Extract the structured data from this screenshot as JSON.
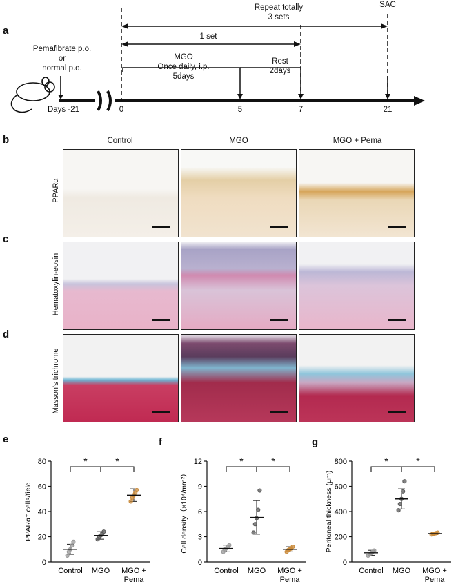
{
  "panel_letters": {
    "a": "a",
    "b": "b",
    "c": "c",
    "d": "d",
    "e": "e",
    "f": "f",
    "g": "g"
  },
  "timeline": {
    "repeat": "Repeat totally\n3 sets",
    "sac": "SAC",
    "one_set": "1 set",
    "pema": "Pemafibrate p.o.\nor\nnormal p.o.",
    "mgo": "MGO\nOnce daily, i.p.\n5days",
    "rest": "Rest\n2days",
    "days_label": "Days -21",
    "ticks": [
      "0",
      "5",
      "7",
      "21"
    ]
  },
  "histology": {
    "columns": [
      "Control",
      "MGO",
      "MGO + Pema"
    ],
    "rows": [
      "PPARα",
      "Hematoxylin-eosin",
      "Masson's trichrome"
    ]
  },
  "chart_data": [
    {
      "type": "scatter",
      "panel": "e",
      "ylabel": "PPARα⁺ cells/field",
      "ylim": [
        0,
        80
      ],
      "yticks": [
        "0",
        "20",
        "40",
        "60",
        "80"
      ],
      "categories": [
        "Control",
        "MGO",
        "MGO +\nPema"
      ],
      "means": [
        10,
        21,
        53
      ],
      "sd": [
        4,
        3,
        5
      ],
      "points": [
        [
          5,
          8,
          10,
          13,
          16
        ],
        [
          18,
          20,
          21,
          22,
          24
        ],
        [
          48,
          51,
          53,
          55,
          57
        ]
      ],
      "colors": [
        "#9a9a9a",
        "#5a5a5a",
        "#c98a3a"
      ],
      "significance": [
        "*",
        "*"
      ]
    },
    {
      "type": "scatter",
      "panel": "f",
      "ylabel": "Cell density（×10⁴/mm²）",
      "ylim": [
        0,
        12
      ],
      "yticks": [
        "0",
        "3",
        "6",
        "9",
        "12"
      ],
      "categories": [
        "Control",
        "MGO",
        "MGO +\nPema"
      ],
      "means": [
        1.6,
        5.3,
        1.5
      ],
      "sd": [
        0.4,
        2.0,
        0.3
      ],
      "points": [
        [
          1.2,
          1.5,
          1.6,
          1.8,
          2.0
        ],
        [
          3.5,
          4.5,
          5.2,
          6.2,
          8.5
        ],
        [
          1.2,
          1.4,
          1.5,
          1.6,
          1.8
        ]
      ],
      "colors": [
        "#9a9a9a",
        "#5a5a5a",
        "#c98a3a"
      ],
      "significance": [
        "*",
        "*"
      ]
    },
    {
      "type": "scatter",
      "panel": "g",
      "ylabel": "Peritoneal thickness (μm)",
      "ylim": [
        0,
        800
      ],
      "yticks": [
        "0",
        "200",
        "400",
        "600",
        "800"
      ],
      "categories": [
        "Control",
        "MGO",
        "MGO +\nPema"
      ],
      "means": [
        72,
        500,
        225
      ],
      "sd": [
        20,
        80,
        8
      ],
      "points": [
        [
          50,
          60,
          70,
          80,
          90
        ],
        [
          410,
          460,
          500,
          560,
          640
        ],
        [
          218,
          222,
          225,
          228,
          232
        ]
      ],
      "colors": [
        "#9a9a9a",
        "#5a5a5a",
        "#c98a3a"
      ],
      "significance": [
        "*",
        "*"
      ]
    }
  ]
}
